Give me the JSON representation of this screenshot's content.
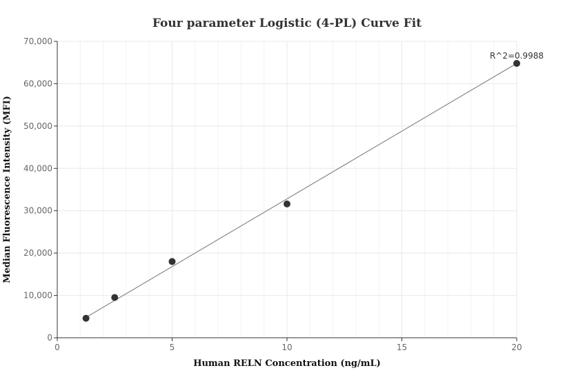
{
  "chart_data": {
    "type": "scatter",
    "title": "Four parameter Logistic (4-PL) Curve Fit",
    "xlabel": "Human RELN Concentration (ng/mL)",
    "ylabel": "Median Fluorescence Intensity (MFI)",
    "xlim": [
      0,
      20
    ],
    "ylim": [
      0,
      70000
    ],
    "x_ticks": [
      0,
      5,
      10,
      15,
      20
    ],
    "x_tick_labels": [
      "0",
      "5",
      "10",
      "15",
      "20"
    ],
    "y_ticks": [
      0,
      10000,
      20000,
      30000,
      40000,
      50000,
      60000,
      70000
    ],
    "y_tick_labels": [
      "0",
      "10,000",
      "20,000",
      "30,000",
      "40,000",
      "50,000",
      "60,000",
      "70,000"
    ],
    "grid": true,
    "points": [
      {
        "x": 1.25,
        "y": 4600
      },
      {
        "x": 2.5,
        "y": 9500
      },
      {
        "x": 5,
        "y": 18000
      },
      {
        "x": 10,
        "y": 31600
      },
      {
        "x": 20,
        "y": 64800
      }
    ],
    "fit_line": [
      {
        "x": 1.25,
        "y": 4800
      },
      {
        "x": 20,
        "y": 64800
      }
    ],
    "annotation": "R^2=0.9988",
    "colors": {
      "points": "#333333",
      "fit_line": "#888888",
      "grid": "#e8e8e8",
      "axis": "#333333"
    }
  }
}
